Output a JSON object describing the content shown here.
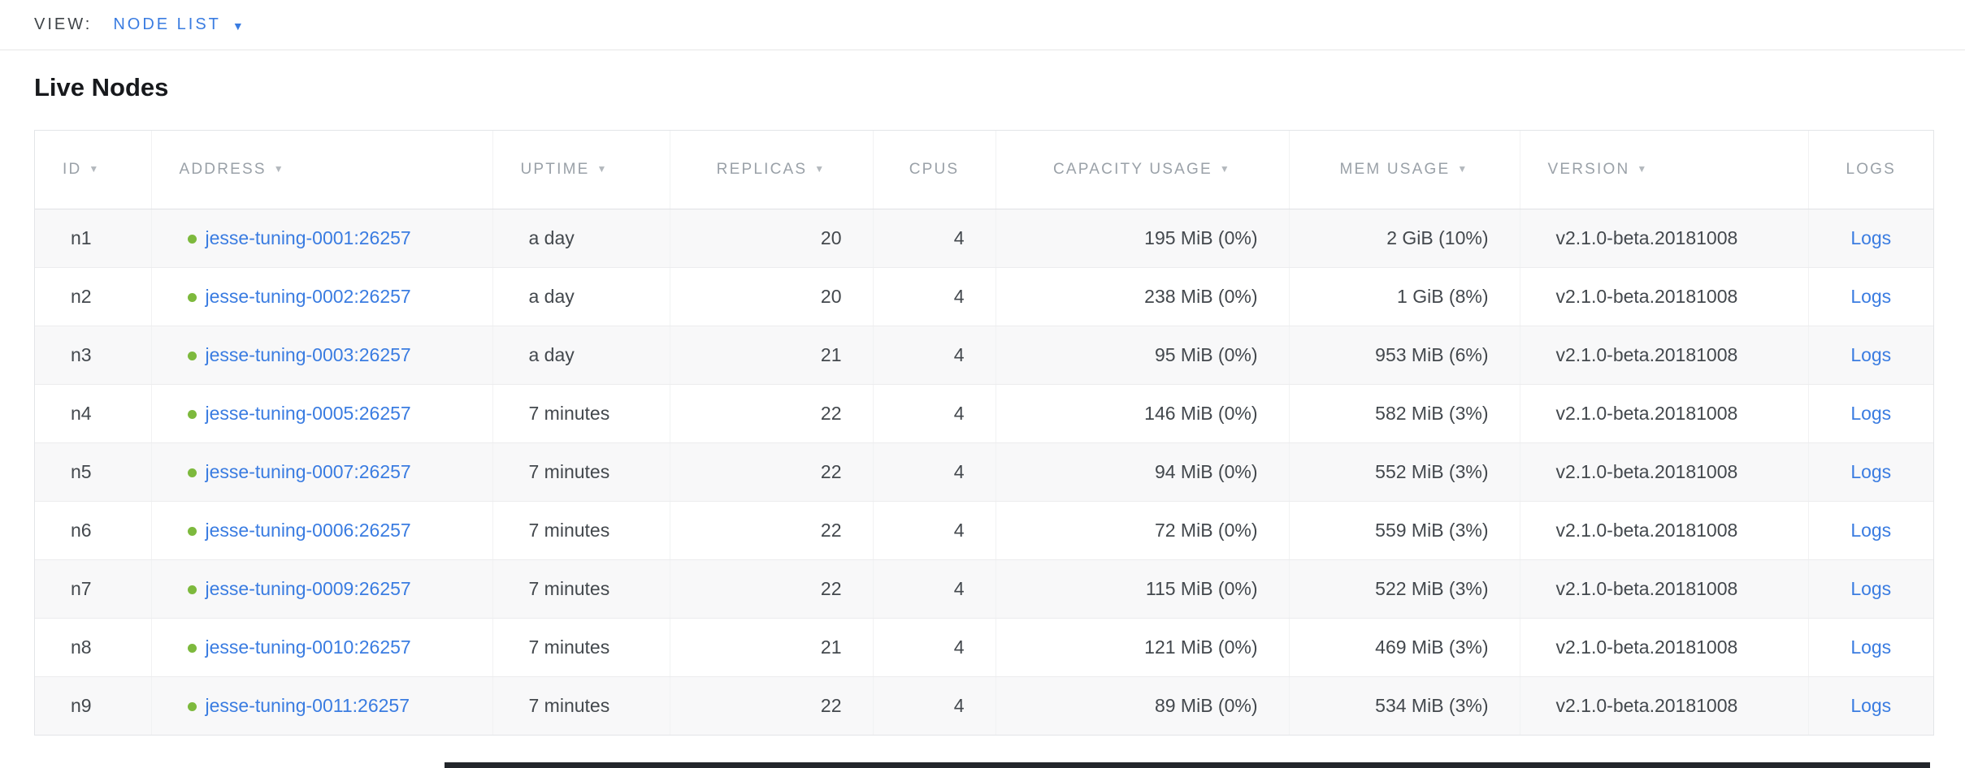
{
  "view_bar": {
    "label": "VIEW:",
    "selected": "NODE LIST",
    "caret": "▼"
  },
  "page": {
    "title": "Live Nodes"
  },
  "table": {
    "sort_arrow": "▼",
    "columns": [
      {
        "key": "id",
        "label": "ID",
        "sortable": true,
        "header_align": "left",
        "cell_align": "left"
      },
      {
        "key": "address",
        "label": "ADDRESS",
        "sortable": true,
        "header_align": "left",
        "cell_align": "left"
      },
      {
        "key": "uptime",
        "label": "UPTIME",
        "sortable": true,
        "header_align": "left",
        "cell_align": "left"
      },
      {
        "key": "replicas",
        "label": "REPLICAS",
        "sortable": true,
        "header_align": "center",
        "cell_align": "right"
      },
      {
        "key": "cpus",
        "label": "CPUS",
        "sortable": false,
        "header_align": "center",
        "cell_align": "right"
      },
      {
        "key": "capacity",
        "label": "CAPACITY USAGE",
        "sortable": true,
        "header_align": "center",
        "cell_align": "right"
      },
      {
        "key": "mem",
        "label": "MEM USAGE",
        "sortable": true,
        "header_align": "center",
        "cell_align": "right"
      },
      {
        "key": "version",
        "label": "VERSION",
        "sortable": true,
        "header_align": "left",
        "cell_align": "left"
      },
      {
        "key": "logs",
        "label": "LOGS",
        "sortable": false,
        "header_align": "center",
        "cell_align": "center"
      }
    ],
    "rows": [
      {
        "id": "n1",
        "address": "jesse-tuning-0001:26257",
        "uptime": "a day",
        "replicas": "20",
        "cpus": "4",
        "capacity": "195 MiB (0%)",
        "mem": "2 GiB (10%)",
        "version": "v2.1.0-beta.20181008",
        "logs": "Logs"
      },
      {
        "id": "n2",
        "address": "jesse-tuning-0002:26257",
        "uptime": "a day",
        "replicas": "20",
        "cpus": "4",
        "capacity": "238 MiB (0%)",
        "mem": "1 GiB (8%)",
        "version": "v2.1.0-beta.20181008",
        "logs": "Logs"
      },
      {
        "id": "n3",
        "address": "jesse-tuning-0003:26257",
        "uptime": "a day",
        "replicas": "21",
        "cpus": "4",
        "capacity": "95 MiB (0%)",
        "mem": "953 MiB (6%)",
        "version": "v2.1.0-beta.20181008",
        "logs": "Logs"
      },
      {
        "id": "n4",
        "address": "jesse-tuning-0005:26257",
        "uptime": "7 minutes",
        "replicas": "22",
        "cpus": "4",
        "capacity": "146 MiB (0%)",
        "mem": "582 MiB (3%)",
        "version": "v2.1.0-beta.20181008",
        "logs": "Logs"
      },
      {
        "id": "n5",
        "address": "jesse-tuning-0007:26257",
        "uptime": "7 minutes",
        "replicas": "22",
        "cpus": "4",
        "capacity": "94 MiB (0%)",
        "mem": "552 MiB (3%)",
        "version": "v2.1.0-beta.20181008",
        "logs": "Logs"
      },
      {
        "id": "n6",
        "address": "jesse-tuning-0006:26257",
        "uptime": "7 minutes",
        "replicas": "22",
        "cpus": "4",
        "capacity": "72 MiB (0%)",
        "mem": "559 MiB (3%)",
        "version": "v2.1.0-beta.20181008",
        "logs": "Logs"
      },
      {
        "id": "n7",
        "address": "jesse-tuning-0009:26257",
        "uptime": "7 minutes",
        "replicas": "22",
        "cpus": "4",
        "capacity": "115 MiB (0%)",
        "mem": "522 MiB (3%)",
        "version": "v2.1.0-beta.20181008",
        "logs": "Logs"
      },
      {
        "id": "n8",
        "address": "jesse-tuning-0010:26257",
        "uptime": "7 minutes",
        "replicas": "21",
        "cpus": "4",
        "capacity": "121 MiB (0%)",
        "mem": "469 MiB (3%)",
        "version": "v2.1.0-beta.20181008",
        "logs": "Logs"
      },
      {
        "id": "n9",
        "address": "jesse-tuning-0011:26257",
        "uptime": "7 minutes",
        "replicas": "22",
        "cpus": "4",
        "capacity": "89 MiB (0%)",
        "mem": "534 MiB (3%)",
        "version": "v2.1.0-beta.20181008",
        "logs": "Logs"
      }
    ]
  },
  "colors": {
    "link": "#3a7ce1",
    "node_status_dot": "#7db93d"
  }
}
